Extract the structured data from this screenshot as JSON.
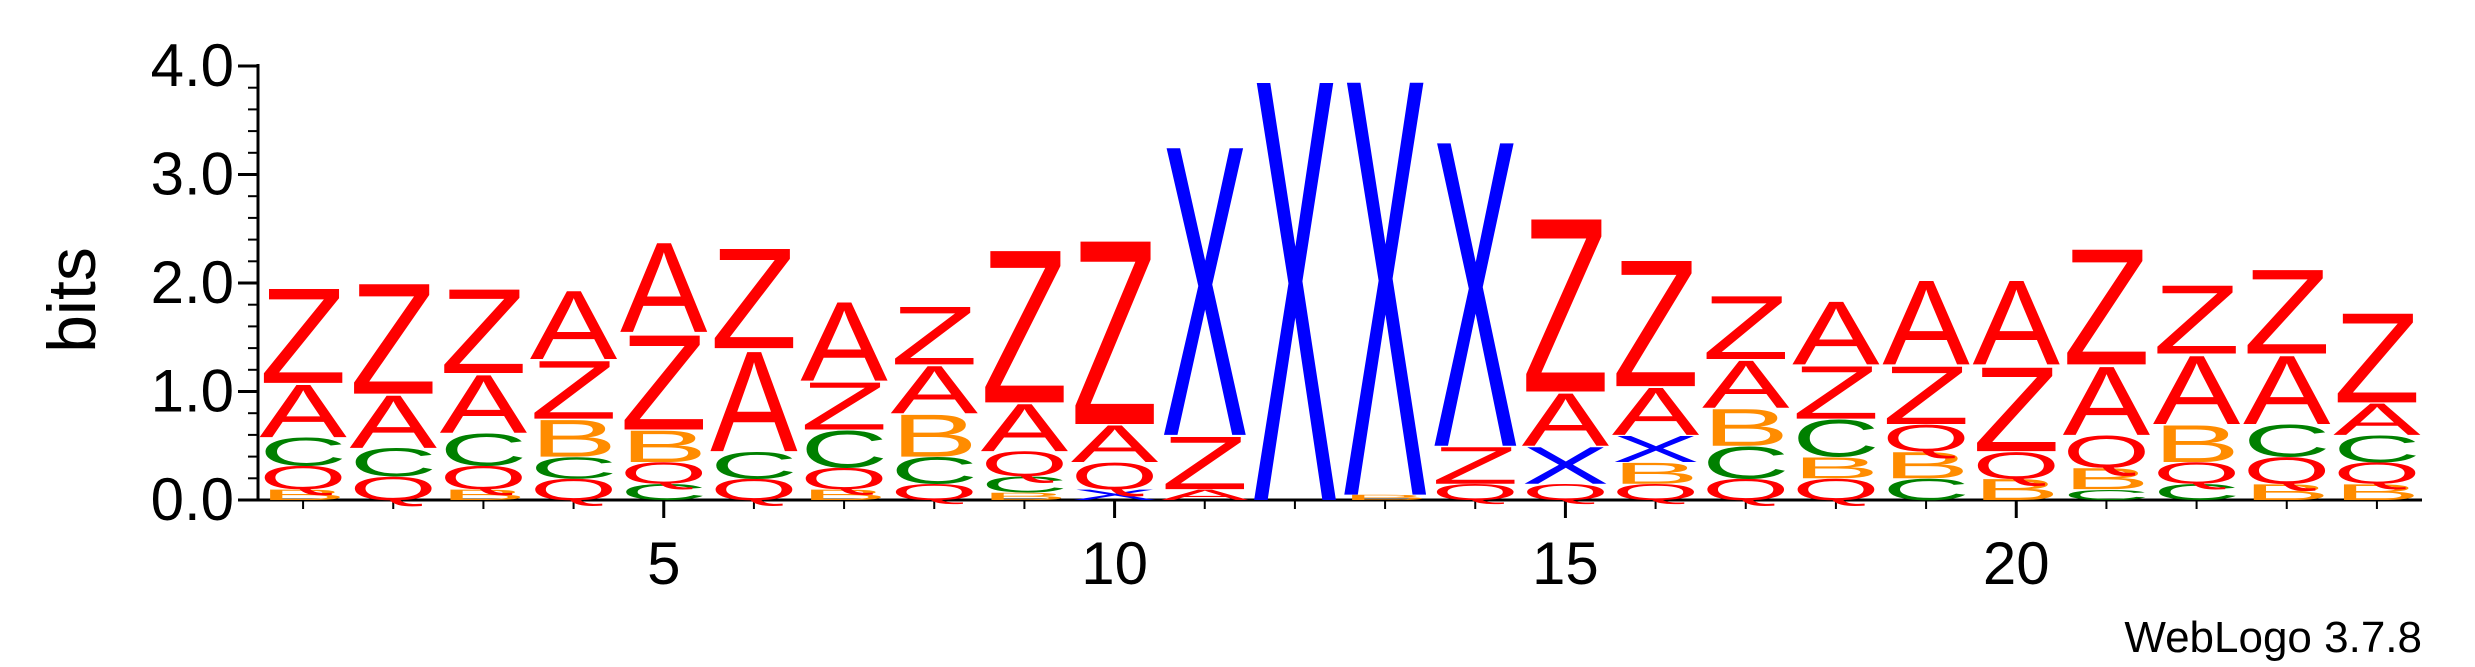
{
  "chart_data": {
    "type": "sequence-logo",
    "ylabel": "bits",
    "ylim": [
      0,
      4
    ],
    "y_ticks": [
      "0.0",
      "1.0",
      "2.0",
      "3.0",
      "4.0"
    ],
    "x_ticks": [
      5,
      10,
      15,
      20
    ],
    "positions": [
      1,
      2,
      3,
      4,
      5,
      6,
      7,
      8,
      9,
      10,
      11,
      12,
      13,
      14,
      15,
      16,
      17,
      18,
      19,
      20,
      21,
      22,
      23,
      24
    ],
    "colors": {
      "Z": "#ff0000",
      "A": "#ff0000",
      "Q": "#ff0000",
      "C": "#008000",
      "B": "#ff8c00",
      "X": "#0000ff"
    },
    "stacks": [
      [
        [
          "B",
          0.1
        ],
        [
          "Q",
          0.22
        ],
        [
          "C",
          0.26
        ],
        [
          "A",
          0.5
        ],
        [
          "Z",
          0.9
        ]
      ],
      [
        [
          "Q",
          0.22
        ],
        [
          "C",
          0.26
        ],
        [
          "A",
          0.5
        ],
        [
          "Z",
          1.05
        ]
      ],
      [
        [
          "B",
          0.1
        ],
        [
          "Q",
          0.22
        ],
        [
          "C",
          0.3
        ],
        [
          "A",
          0.55
        ],
        [
          "Z",
          0.8
        ]
      ],
      [
        [
          "Q",
          0.2
        ],
        [
          "C",
          0.2
        ],
        [
          "B",
          0.35
        ],
        [
          "Z",
          0.55
        ],
        [
          "A",
          0.65
        ]
      ],
      [
        [
          "C",
          0.15
        ],
        [
          "Q",
          0.2
        ],
        [
          "B",
          0.3
        ],
        [
          "Z",
          0.9
        ],
        [
          "A",
          0.85
        ]
      ],
      [
        [
          "Q",
          0.2
        ],
        [
          "C",
          0.25
        ],
        [
          "A",
          0.95
        ],
        [
          "Z",
          0.95
        ]
      ],
      [
        [
          "B",
          0.1
        ],
        [
          "Q",
          0.2
        ],
        [
          "C",
          0.35
        ],
        [
          "Z",
          0.45
        ],
        [
          "A",
          0.75
        ]
      ],
      [
        [
          "Q",
          0.15
        ],
        [
          "C",
          0.25
        ],
        [
          "B",
          0.4
        ],
        [
          "A",
          0.45
        ],
        [
          "Z",
          0.55
        ]
      ],
      [
        [
          "B",
          0.07
        ],
        [
          "C",
          0.15
        ],
        [
          "Q",
          0.23
        ],
        [
          "A",
          0.45
        ],
        [
          "Z",
          1.45
        ]
      ],
      [
        [
          "X",
          0.1
        ],
        [
          "Q",
          0.25
        ],
        [
          "A",
          0.35
        ],
        [
          "Z",
          1.75
        ]
      ],
      [
        [
          "A",
          0.1
        ],
        [
          "Z",
          0.5
        ],
        [
          "X",
          2.75
        ]
      ],
      [
        [
          "X",
          4.0
        ]
      ],
      [
        [
          "B",
          0.05
        ],
        [
          "X",
          3.95
        ]
      ],
      [
        [
          "Q",
          0.15
        ],
        [
          "Z",
          0.35
        ],
        [
          "X",
          2.9
        ]
      ],
      [
        [
          "Q",
          0.15
        ],
        [
          "X",
          0.35
        ],
        [
          "A",
          0.5
        ],
        [
          "Z",
          1.65
        ]
      ],
      [
        [
          "Q",
          0.15
        ],
        [
          "B",
          0.2
        ],
        [
          "X",
          0.25
        ],
        [
          "A",
          0.45
        ],
        [
          "Z",
          1.2
        ]
      ],
      [
        [
          "Q",
          0.2
        ],
        [
          "C",
          0.3
        ],
        [
          "B",
          0.35
        ],
        [
          "A",
          0.45
        ],
        [
          "Z",
          0.6
        ]
      ],
      [
        [
          "Q",
          0.2
        ],
        [
          "B",
          0.2
        ],
        [
          "C",
          0.35
        ],
        [
          "Z",
          0.5
        ],
        [
          "A",
          0.6
        ]
      ],
      [
        [
          "C",
          0.2
        ],
        [
          "B",
          0.25
        ],
        [
          "Q",
          0.25
        ],
        [
          "Z",
          0.55
        ],
        [
          "A",
          0.8
        ]
      ],
      [
        [
          "B",
          0.2
        ],
        [
          "Q",
          0.25
        ],
        [
          "Z",
          0.8
        ],
        [
          "A",
          0.8
        ]
      ],
      [
        [
          "C",
          0.1
        ],
        [
          "B",
          0.2
        ],
        [
          "Q",
          0.3
        ],
        [
          "A",
          0.65
        ],
        [
          "Z",
          1.1
        ]
      ],
      [
        [
          "C",
          0.15
        ],
        [
          "Q",
          0.2
        ],
        [
          "B",
          0.35
        ],
        [
          "A",
          0.65
        ],
        [
          "Z",
          0.65
        ]
      ],
      [
        [
          "B",
          0.15
        ],
        [
          "Q",
          0.25
        ],
        [
          "C",
          0.3
        ],
        [
          "A",
          0.65
        ],
        [
          "Z",
          0.8
        ]
      ],
      [
        [
          "B",
          0.15
        ],
        [
          "Q",
          0.2
        ],
        [
          "C",
          0.25
        ],
        [
          "A",
          0.3
        ],
        [
          "Z",
          0.85
        ]
      ]
    ]
  },
  "footer": {
    "credit": "WebLogo 3.7.8"
  }
}
